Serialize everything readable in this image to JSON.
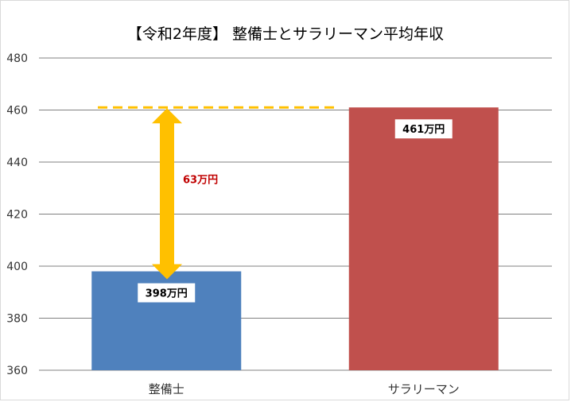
{
  "chart_data": {
    "type": "bar",
    "title": "【令和2年度】 整備士とサラリーマン平均年収",
    "categories": [
      "整備士",
      "サラリーマン"
    ],
    "values": [
      398,
      461
    ],
    "ylim": [
      360,
      480
    ],
    "y_ticks": [
      360,
      380,
      400,
      420,
      440,
      460,
      480
    ],
    "grid": true,
    "legend": "none",
    "bar_colors": [
      "#4f81bd",
      "#c0504d"
    ],
    "data_labels": [
      "398万円",
      "461万円"
    ],
    "annotation": {
      "label": "63万円",
      "from_value": 398,
      "to_value": 461,
      "arrow_color": "#ffc000",
      "label_color": "#c00000"
    }
  }
}
